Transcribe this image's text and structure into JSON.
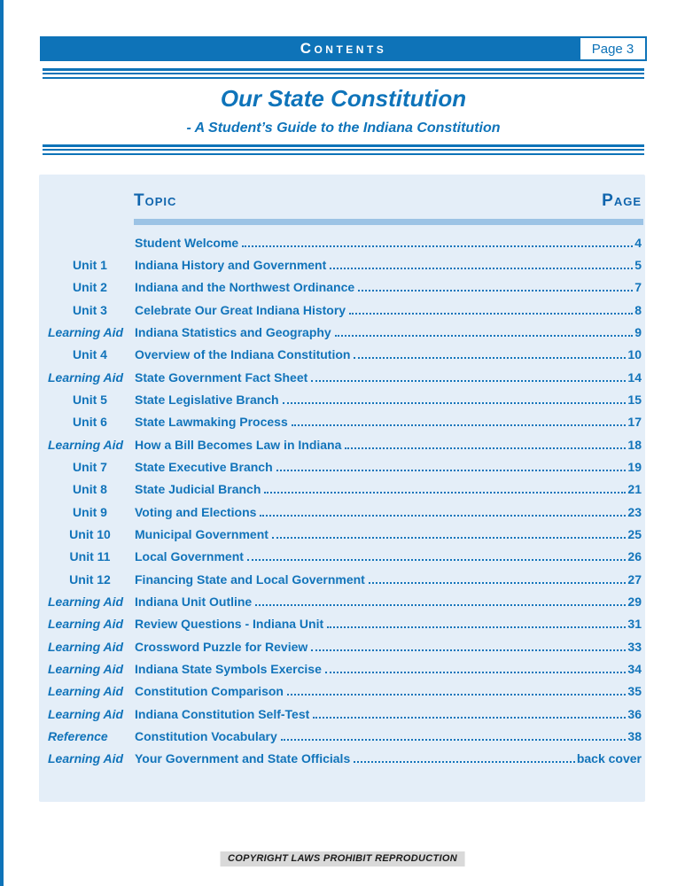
{
  "header": {
    "title": "Contents",
    "page_badge": "Page 3"
  },
  "title": "Our State Constitution",
  "subtitle": "- A Student’s Guide to the Indiana Constitution",
  "table": {
    "topic_header": "Topic",
    "page_header": "Page",
    "rows": [
      {
        "kind": "none",
        "label": "",
        "topic": "Student Welcome",
        "page": "4"
      },
      {
        "kind": "unit",
        "label": "Unit 1",
        "topic": "Indiana History and Government",
        "page": "5"
      },
      {
        "kind": "unit",
        "label": "Unit 2",
        "topic": "Indiana and the Northwest Ordinance",
        "page": "7"
      },
      {
        "kind": "unit",
        "label": "Unit 3",
        "topic": "Celebrate Our Great Indiana History",
        "page": "8"
      },
      {
        "kind": "aid",
        "label": "Learning Aid",
        "topic": "Indiana Statistics and Geography",
        "page": "9"
      },
      {
        "kind": "unit",
        "label": "Unit 4",
        "topic": "Overview of the Indiana Constitution",
        "page": "10"
      },
      {
        "kind": "aid",
        "label": "Learning Aid",
        "topic": "State Government Fact Sheet",
        "page": "14"
      },
      {
        "kind": "unit",
        "label": "Unit 5",
        "topic": "State Legislative Branch",
        "page": "15"
      },
      {
        "kind": "unit",
        "label": "Unit 6",
        "topic": "State Lawmaking Process",
        "page": "17"
      },
      {
        "kind": "aid",
        "label": "Learning Aid",
        "topic": "How a Bill Becomes Law in Indiana",
        "page": "18"
      },
      {
        "kind": "unit",
        "label": "Unit 7",
        "topic": "State Executive Branch",
        "page": "19"
      },
      {
        "kind": "unit",
        "label": "Unit 8",
        "topic": "State Judicial Branch",
        "page": "21"
      },
      {
        "kind": "unit",
        "label": "Unit 9",
        "topic": "Voting and Elections",
        "page": "23"
      },
      {
        "kind": "unit",
        "label": "Unit 10",
        "topic": "Municipal Government",
        "page": "25"
      },
      {
        "kind": "unit",
        "label": "Unit 11",
        "topic": "Local Government",
        "page": "26"
      },
      {
        "kind": "unit",
        "label": "Unit 12",
        "topic": "Financing State and Local Government",
        "page": "27"
      },
      {
        "kind": "aid",
        "label": "Learning Aid",
        "topic": "Indiana Unit Outline",
        "page": "29"
      },
      {
        "kind": "aid",
        "label": "Learning Aid",
        "topic": "Review Questions - Indiana Unit",
        "page": "31"
      },
      {
        "kind": "aid",
        "label": "Learning Aid",
        "topic": "Crossword Puzzle for Review",
        "page": "33"
      },
      {
        "kind": "aid",
        "label": "Learning Aid",
        "topic": "Indiana State Symbols Exercise",
        "page": "34"
      },
      {
        "kind": "aid",
        "label": "Learning Aid",
        "topic": "Constitution Comparison",
        "page": "35"
      },
      {
        "kind": "aid",
        "label": "Learning Aid",
        "topic": "Indiana Constitution Self-Test",
        "page": "36"
      },
      {
        "kind": "ref",
        "label": "Reference",
        "topic": "Constitution Vocabulary",
        "page": "38"
      },
      {
        "kind": "aid",
        "label": "Learning Aid",
        "topic": "Your Government and State Officials",
        "page": "back cover"
      }
    ]
  },
  "footer": {
    "copyright": "COPYRIGHT LAWS PROHIBIT REPRODUCTION"
  },
  "colors": {
    "accent_blue": "#0e73b8",
    "text_blue": "#1274ba",
    "header_text": "#ffffff",
    "panel_background": "#e4eef8",
    "column_rule": "#9cc3e5",
    "footer_background": "#d9d9d9",
    "footer_text": "#1b1b1b"
  }
}
